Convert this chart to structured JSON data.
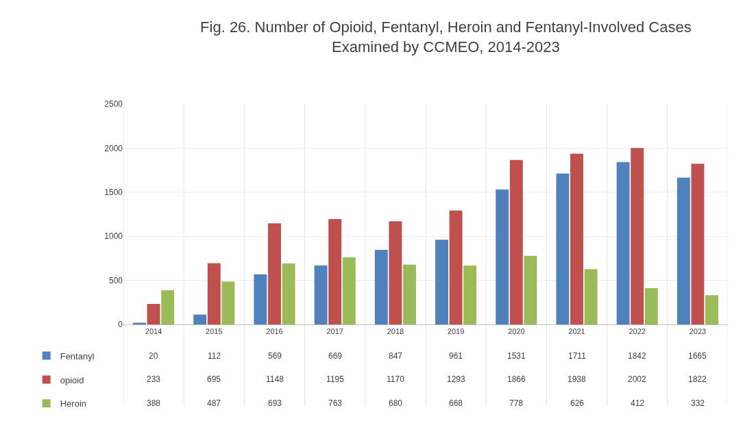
{
  "chart_data": {
    "type": "bar",
    "title": "Fig. 26. Number of Opioid, Fentanyl, Heroin and Fentanyl-Involved Cases Examined by CCMEO, 2014-2023",
    "categories": [
      "2014",
      "2015",
      "2016",
      "2017",
      "2018",
      "2019",
      "2020",
      "2021",
      "2022",
      "2023"
    ],
    "series": [
      {
        "name": "Fentanyl",
        "color": "#4f81bd",
        "values": [
          20,
          112,
          569,
          669,
          847,
          961,
          1531,
          1711,
          1842,
          1665
        ]
      },
      {
        "name": "opioid",
        "color": "#c0504d",
        "values": [
          233,
          695,
          1148,
          1195,
          1170,
          1293,
          1866,
          1938,
          2002,
          1822
        ]
      },
      {
        "name": "Heroin",
        "color": "#9bbb59",
        "values": [
          388,
          487,
          693,
          763,
          680,
          668,
          778,
          626,
          412,
          332
        ]
      }
    ],
    "ylim": [
      0,
      2500
    ],
    "yticks": [
      0,
      500,
      1000,
      1500,
      2000,
      2500
    ],
    "grid": true,
    "legend": "bottom left",
    "data_labels": true
  }
}
